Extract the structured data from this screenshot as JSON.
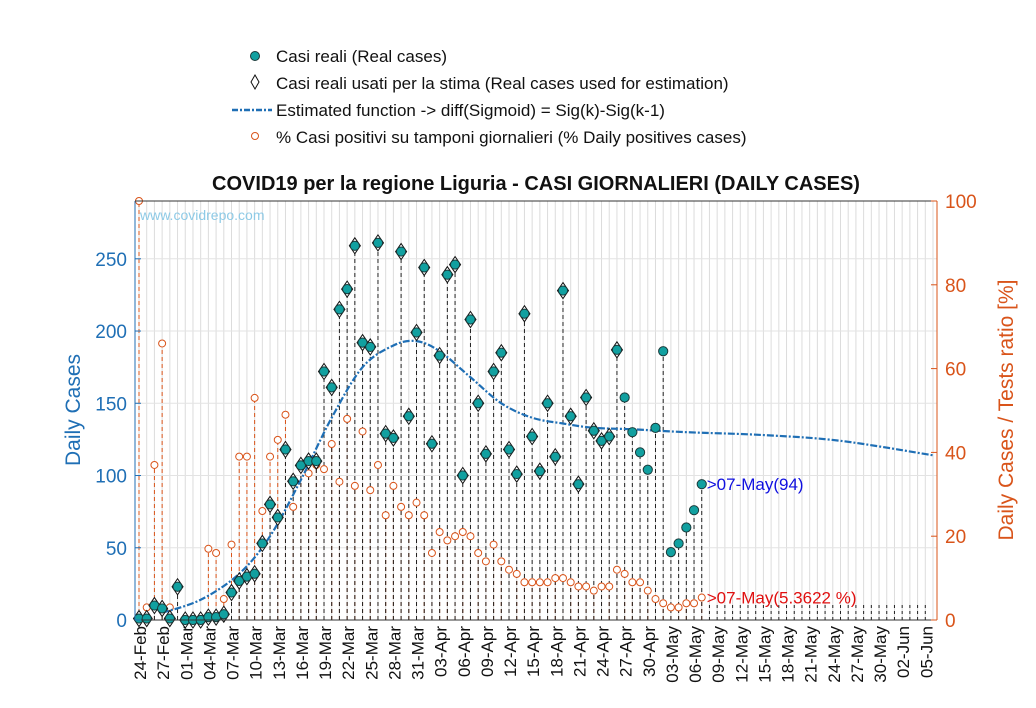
{
  "watermark": "www.covidrepo.com",
  "colors": {
    "real": "#11a0a0",
    "real_edge": "#1a3a3a",
    "fit": "#1f6fb5",
    "ratio": "#d9541a",
    "ratio_label": "#e01010",
    "cases_label": "#1010e0",
    "left_axis": "#1f6fb5",
    "right_axis": "#d9541a"
  },
  "chart_data": {
    "type": "scatter",
    "title": "COVID19 per la regione Liguria - CASI GIORNALIERI (DAILY CASES)",
    "ylabel": "Daily Cases",
    "ylabel_right": "Daily Cases / Tests ratio [%]",
    "ylim": [
      0,
      290
    ],
    "ylim_right": [
      0,
      100
    ],
    "yticks": [
      0,
      50,
      100,
      150,
      200,
      250
    ],
    "yticks_right": [
      0,
      20,
      40,
      60,
      80,
      100
    ],
    "grid": true,
    "legend_position": "top",
    "x_start_date": "2020-02-24",
    "x_end_date": "2020-06-06",
    "xtick_labels": [
      "24-Feb",
      "27-Feb",
      "01-Mar",
      "04-Mar",
      "07-Mar",
      "10-Mar",
      "13-Mar",
      "16-Mar",
      "19-Mar",
      "22-Mar",
      "25-Mar",
      "28-Mar",
      "31-Mar",
      "03-Apr",
      "06-Apr",
      "09-Apr",
      "12-Apr",
      "15-Apr",
      "18-Apr",
      "21-Apr",
      "24-Apr",
      "27-Apr",
      "30-Apr",
      "03-May",
      "06-May",
      "09-May",
      "12-May",
      "15-May",
      "18-May",
      "21-May",
      "24-May",
      "27-May",
      "30-May",
      "02-Jun",
      "05-Jun"
    ],
    "legend": [
      {
        "key": "real",
        "label": "Casi reali (Real cases)"
      },
      {
        "key": "used",
        "label": "Casi reali usati per la stima (Real cases used for estimation)"
      },
      {
        "key": "fit",
        "label": "Estimated function -> diff(Sigmoid) = Sig(k)-Sig(k-1)"
      },
      {
        "key": "ratio",
        "label": "% Casi positivi su tamponi giornalieri (% Daily positives cases)"
      }
    ],
    "series": [
      {
        "name": "Casi reali (Real cases)",
        "dates": [
          "2020-02-24",
          "2020-02-25",
          "2020-02-26",
          "2020-02-27",
          "2020-02-28",
          "2020-02-29",
          "2020-03-01",
          "2020-03-02",
          "2020-03-03",
          "2020-03-04",
          "2020-03-05",
          "2020-03-06",
          "2020-03-07",
          "2020-03-08",
          "2020-03-09",
          "2020-03-10",
          "2020-03-11",
          "2020-03-12",
          "2020-03-13",
          "2020-03-14",
          "2020-03-15",
          "2020-03-16",
          "2020-03-17",
          "2020-03-18",
          "2020-03-19",
          "2020-03-20",
          "2020-03-21",
          "2020-03-22",
          "2020-03-23",
          "2020-03-24",
          "2020-03-25",
          "2020-03-26",
          "2020-03-27",
          "2020-03-28",
          "2020-03-29",
          "2020-03-30",
          "2020-03-31",
          "2020-04-01",
          "2020-04-02",
          "2020-04-03",
          "2020-04-04",
          "2020-04-05",
          "2020-04-06",
          "2020-04-07",
          "2020-04-08",
          "2020-04-09",
          "2020-04-10",
          "2020-04-11",
          "2020-04-12",
          "2020-04-13",
          "2020-04-14",
          "2020-04-15",
          "2020-04-16",
          "2020-04-17",
          "2020-04-18",
          "2020-04-19",
          "2020-04-20",
          "2020-04-21",
          "2020-04-22",
          "2020-04-23",
          "2020-04-24",
          "2020-04-25",
          "2020-04-26",
          "2020-04-27",
          "2020-04-28",
          "2020-04-29",
          "2020-04-30",
          "2020-05-01",
          "2020-05-02",
          "2020-05-03",
          "2020-05-04",
          "2020-05-05",
          "2020-05-06",
          "2020-05-07"
        ],
        "values": [
          1,
          1,
          10,
          8,
          1,
          23,
          0,
          0,
          0,
          2,
          2,
          4,
          19,
          27,
          30,
          32,
          53,
          80,
          71,
          118,
          96,
          107,
          110,
          110,
          172,
          161,
          215,
          229,
          259,
          192,
          189,
          261,
          129,
          126,
          255,
          141,
          199,
          244,
          122,
          183,
          239,
          246,
          100,
          208,
          150,
          115,
          172,
          185,
          118,
          101,
          212,
          127,
          103,
          150,
          113,
          228,
          141,
          94,
          154,
          131,
          124,
          127,
          187,
          154,
          130,
          116,
          104,
          133,
          186,
          47,
          53,
          64,
          76,
          94
        ]
      },
      {
        "name": "Casi reali usati per la stima (Real cases used for estimation)",
        "dates": [
          "2020-02-24",
          "2020-02-25",
          "2020-02-26",
          "2020-02-27",
          "2020-02-28",
          "2020-02-29",
          "2020-03-01",
          "2020-03-02",
          "2020-03-03",
          "2020-03-04",
          "2020-03-05",
          "2020-03-06",
          "2020-03-07",
          "2020-03-08",
          "2020-03-09",
          "2020-03-10",
          "2020-03-11",
          "2020-03-12",
          "2020-03-13",
          "2020-03-14",
          "2020-03-15",
          "2020-03-16",
          "2020-03-17",
          "2020-03-18",
          "2020-03-19",
          "2020-03-20",
          "2020-03-21",
          "2020-03-22",
          "2020-03-23",
          "2020-03-24",
          "2020-03-25",
          "2020-03-26",
          "2020-03-27",
          "2020-03-28",
          "2020-03-29",
          "2020-03-30",
          "2020-03-31",
          "2020-04-01",
          "2020-04-02",
          "2020-04-03",
          "2020-04-04",
          "2020-04-05",
          "2020-04-06",
          "2020-04-07",
          "2020-04-08",
          "2020-04-09",
          "2020-04-10",
          "2020-04-11",
          "2020-04-12",
          "2020-04-13",
          "2020-04-14",
          "2020-04-15",
          "2020-04-16",
          "2020-04-17",
          "2020-04-18",
          "2020-04-19",
          "2020-04-20",
          "2020-04-21",
          "2020-04-22",
          "2020-04-23",
          "2020-04-24",
          "2020-04-25",
          "2020-04-26"
        ],
        "values": [
          1,
          1,
          10,
          8,
          1,
          23,
          0,
          0,
          0,
          2,
          2,
          4,
          19,
          27,
          30,
          32,
          53,
          80,
          71,
          118,
          96,
          107,
          110,
          110,
          172,
          161,
          215,
          229,
          259,
          192,
          189,
          261,
          129,
          126,
          255,
          141,
          199,
          244,
          122,
          183,
          239,
          246,
          100,
          208,
          150,
          115,
          172,
          185,
          118,
          101,
          212,
          127,
          103,
          150,
          113,
          228,
          141,
          94,
          154,
          131,
          124,
          127,
          187
        ]
      },
      {
        "name": "Estimated function -> diff(Sigmoid) = Sig(k)-Sig(k-1)",
        "dates": [
          "2020-02-27",
          "2020-03-03",
          "2020-03-08",
          "2020-03-12",
          "2020-03-16",
          "2020-03-20",
          "2020-03-24",
          "2020-03-28",
          "2020-03-31",
          "2020-04-03",
          "2020-04-07",
          "2020-04-11",
          "2020-04-15",
          "2020-04-19",
          "2020-04-23",
          "2020-04-28",
          "2020-05-05",
          "2020-05-15",
          "2020-05-25",
          "2020-06-06"
        ],
        "values": [
          5,
          14,
          32,
          58,
          97,
          140,
          175,
          190,
          193,
          186,
          168,
          150,
          140,
          136,
          133,
          132,
          130,
          128,
          124,
          114
        ]
      },
      {
        "name": "% Casi positivi su tamponi giornalieri (% Daily positives cases)",
        "dates": [
          "2020-02-24",
          "2020-02-25",
          "2020-02-26",
          "2020-02-27",
          "2020-02-28",
          "2020-03-04",
          "2020-03-05",
          "2020-03-06",
          "2020-03-07",
          "2020-03-08",
          "2020-03-09",
          "2020-03-10",
          "2020-03-11",
          "2020-03-12",
          "2020-03-13",
          "2020-03-14",
          "2020-03-15",
          "2020-03-16",
          "2020-03-17",
          "2020-03-18",
          "2020-03-19",
          "2020-03-20",
          "2020-03-21",
          "2020-03-22",
          "2020-03-23",
          "2020-03-24",
          "2020-03-25",
          "2020-03-26",
          "2020-03-27",
          "2020-03-28",
          "2020-03-29",
          "2020-03-30",
          "2020-03-31",
          "2020-04-01",
          "2020-04-02",
          "2020-04-03",
          "2020-04-04",
          "2020-04-05",
          "2020-04-06",
          "2020-04-07",
          "2020-04-08",
          "2020-04-09",
          "2020-04-10",
          "2020-04-11",
          "2020-04-12",
          "2020-04-13",
          "2020-04-14",
          "2020-04-15",
          "2020-04-16",
          "2020-04-17",
          "2020-04-18",
          "2020-04-19",
          "2020-04-20",
          "2020-04-21",
          "2020-04-22",
          "2020-04-23",
          "2020-04-24",
          "2020-04-25",
          "2020-04-26",
          "2020-04-27",
          "2020-04-28",
          "2020-04-29",
          "2020-04-30",
          "2020-05-01",
          "2020-05-02",
          "2020-05-03",
          "2020-05-04",
          "2020-05-05",
          "2020-05-06",
          "2020-05-07"
        ],
        "values": [
          100,
          3,
          37,
          66,
          3,
          17,
          16,
          5,
          18,
          39,
          39,
          53,
          26,
          39,
          43,
          49,
          27,
          37,
          35,
          37,
          36,
          42,
          33,
          48,
          32,
          45,
          31,
          37,
          25,
          32,
          27,
          25,
          28,
          25,
          16,
          21,
          19,
          20,
          21,
          20,
          16,
          14,
          18,
          14,
          12,
          11,
          9,
          9,
          9,
          9,
          10,
          10,
          9,
          8,
          8,
          7,
          8,
          8,
          12,
          11,
          9,
          9,
          7,
          5,
          4,
          3,
          3,
          4,
          4,
          5.3622
        ]
      }
    ],
    "annotations": [
      {
        "text": ">07-May(94)",
        "date": "2020-05-07",
        "value": 94,
        "axis": "left"
      },
      {
        "text": ">07-May(5.3622 %)",
        "date": "2020-05-07",
        "value": 5.3622,
        "axis": "right"
      }
    ]
  }
}
